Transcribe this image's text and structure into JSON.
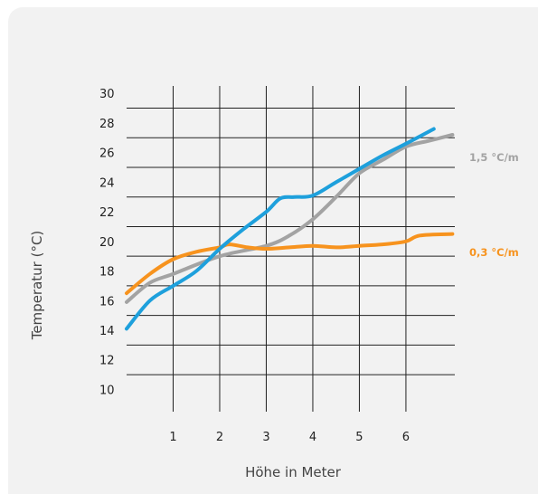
{
  "chart_data": {
    "type": "line",
    "xlabel": "Höhe in Meter",
    "ylabel": "Temperatur (°C)",
    "xlim": [
      0,
      7.05
    ],
    "ylim": [
      8.5,
      30.5
    ],
    "x_ticks": [
      "1",
      "2",
      "3",
      "4",
      "5",
      "6"
    ],
    "x_tick_values": [
      1,
      2,
      3,
      4,
      5,
      6
    ],
    "y_ticks": [
      "10",
      "12",
      "14",
      "16",
      "18",
      "20",
      "22",
      "24",
      "26",
      "28",
      "30"
    ],
    "y_tick_values": [
      10,
      12,
      14,
      16,
      18,
      20,
      22,
      24,
      26,
      28,
      30
    ],
    "grid": true,
    "series": [
      {
        "name": "1,5 °C/m",
        "color": "#a3a3a3",
        "points": [
          [
            0,
            15.9
          ],
          [
            0.5,
            17.2
          ],
          [
            1,
            17.8
          ],
          [
            2,
            19.0
          ],
          [
            3,
            19.7
          ],
          [
            3.5,
            20.4
          ],
          [
            4,
            21.5
          ],
          [
            4.5,
            23.0
          ],
          [
            5,
            24.6
          ],
          [
            5.5,
            25.5
          ],
          [
            6,
            26.4
          ],
          [
            6.5,
            26.8
          ],
          [
            7,
            27.2
          ]
        ]
      },
      {
        "name": "0,3 °C/m",
        "color": "#f7931e",
        "points": [
          [
            0,
            16.5
          ],
          [
            0.5,
            17.8
          ],
          [
            1,
            18.8
          ],
          [
            1.5,
            19.3
          ],
          [
            2,
            19.6
          ],
          [
            2.2,
            19.8
          ],
          [
            2.6,
            19.6
          ],
          [
            3,
            19.5
          ],
          [
            3.5,
            19.6
          ],
          [
            4,
            19.7
          ],
          [
            4.5,
            19.6
          ],
          [
            5,
            19.7
          ],
          [
            5.5,
            19.8
          ],
          [
            6,
            20.0
          ],
          [
            6.3,
            20.4
          ],
          [
            7,
            20.5
          ]
        ]
      },
      {
        "name": "",
        "color": "#1ea0dc",
        "points": [
          [
            0,
            14.1
          ],
          [
            0.5,
            16.0
          ],
          [
            1,
            17.0
          ],
          [
            1.5,
            18.0
          ],
          [
            2,
            19.5
          ],
          [
            2.5,
            20.8
          ],
          [
            3,
            22.0
          ],
          [
            3.3,
            22.9
          ],
          [
            3.6,
            23.0
          ],
          [
            4,
            23.1
          ],
          [
            4.5,
            24.0
          ],
          [
            5,
            24.9
          ],
          [
            5.5,
            25.8
          ],
          [
            6,
            26.6
          ],
          [
            6.6,
            27.6
          ]
        ]
      }
    ]
  }
}
